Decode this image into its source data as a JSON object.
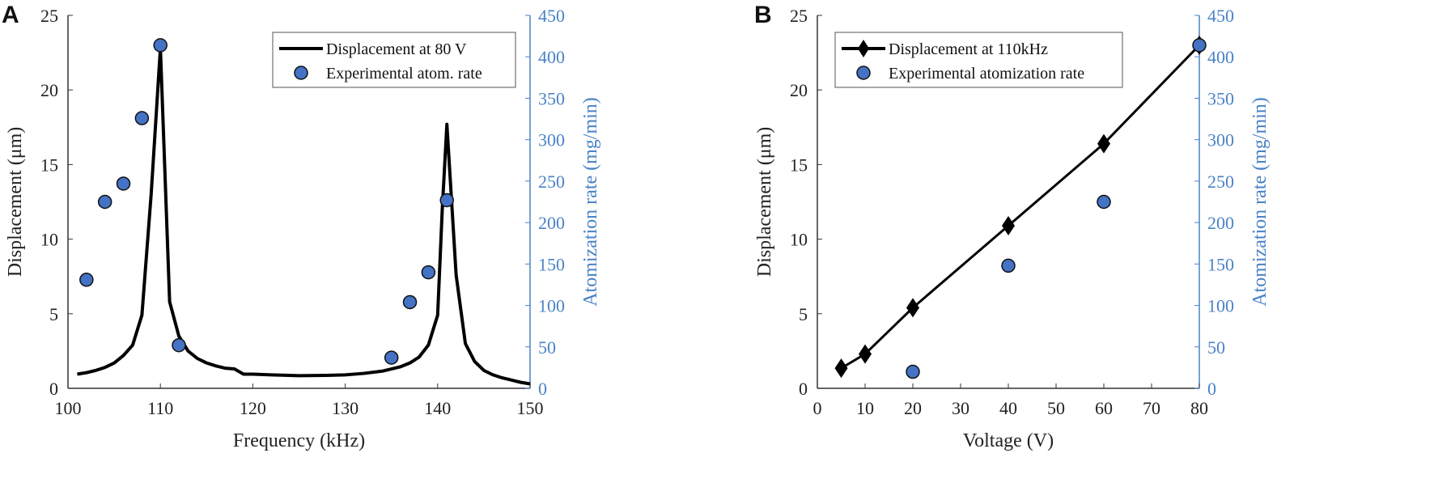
{
  "colors": {
    "marker": "#4472c4",
    "right_axis": "#4a82c6",
    "line": "#000000"
  },
  "chart_data": [
    {
      "panel": "A",
      "type": "line",
      "xlabel": "Frequency (kHz)",
      "ylabel": "Displacement (μm)",
      "ylabel_right": "Atomization rate (mg/min)",
      "xlim": [
        100,
        150
      ],
      "ylim": [
        0,
        25
      ],
      "ylim_right": [
        0,
        450
      ],
      "xticks": [
        100,
        110,
        120,
        130,
        140,
        150
      ],
      "yticks": [
        0,
        5,
        10,
        15,
        20,
        25
      ],
      "yticks_right": [
        0,
        50,
        100,
        150,
        200,
        250,
        300,
        350,
        400,
        450
      ],
      "legend_position": "top-right",
      "series": [
        {
          "name": "Displacement at 80 V",
          "axis": "left",
          "style": "line",
          "x": [
            101,
            102,
            103,
            104,
            105,
            106,
            107,
            108,
            109,
            110,
            111,
            112,
            113,
            114,
            115,
            116,
            117,
            118,
            119,
            120,
            122,
            125,
            128,
            130,
            132,
            134,
            135,
            136,
            137,
            138,
            139,
            140,
            140.5,
            141,
            142,
            143,
            144,
            145,
            146,
            147,
            148,
            149,
            150
          ],
          "y": [
            0.95,
            1.05,
            1.2,
            1.4,
            1.7,
            2.2,
            2.9,
            4.9,
            13,
            22.8,
            5.8,
            3.5,
            2.5,
            2.0,
            1.7,
            1.5,
            1.35,
            1.3,
            0.95,
            0.95,
            0.9,
            0.85,
            0.87,
            0.9,
            1.0,
            1.15,
            1.3,
            1.45,
            1.7,
            2.1,
            2.9,
            4.9,
            12,
            17.7,
            7.6,
            3.0,
            1.8,
            1.2,
            0.9,
            0.7,
            0.55,
            0.4,
            0.3
          ]
        },
        {
          "name": "Experimental atom. rate",
          "axis": "right",
          "style": "markers",
          "x": [
            102,
            104,
            106,
            108,
            110,
            112,
            135,
            137,
            139,
            141
          ],
          "y": [
            131,
            225,
            247,
            326,
            414,
            52,
            37,
            104,
            140,
            227
          ]
        }
      ]
    },
    {
      "panel": "B",
      "type": "line",
      "xlabel": "Voltage (V)",
      "ylabel": "Displacement (μm)",
      "ylabel_right": "Atomization rate (mg/min)",
      "xlim": [
        0,
        80
      ],
      "ylim": [
        0,
        25
      ],
      "ylim_right": [
        0,
        450
      ],
      "xticks": [
        0,
        10,
        20,
        30,
        40,
        50,
        60,
        70,
        80
      ],
      "yticks": [
        0,
        5,
        10,
        15,
        20,
        25
      ],
      "yticks_right": [
        0,
        50,
        100,
        150,
        200,
        250,
        300,
        350,
        400,
        450
      ],
      "legend_position": "top-left",
      "series": [
        {
          "name": "Displacement at 110kHz",
          "axis": "left",
          "style": "line-diamond",
          "x": [
            5,
            10,
            20,
            40,
            60,
            80
          ],
          "y": [
            1.35,
            2.3,
            5.4,
            10.9,
            16.4,
            23
          ]
        },
        {
          "name": "Experimental atomization rate",
          "axis": "right",
          "style": "markers",
          "x": [
            20,
            40,
            60,
            80
          ],
          "y": [
            20,
            148,
            225,
            414
          ]
        }
      ]
    }
  ]
}
